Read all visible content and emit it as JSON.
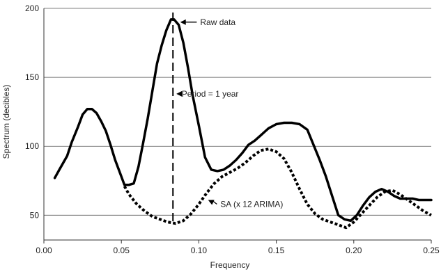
{
  "chart_data": {
    "type": "line",
    "title": "",
    "xlabel": "Frequency",
    "ylabel": "Spectrum (decibles)",
    "xlim": [
      0.0,
      0.25
    ],
    "ylim": [
      32,
      200
    ],
    "x_ticks": [
      "0.00",
      "0.05",
      "0.10",
      "0.15",
      "0.20",
      "0.25"
    ],
    "x_tick_values": [
      0.0,
      0.05,
      0.1,
      0.15,
      0.2,
      0.25
    ],
    "y_ticks": [
      "50",
      "100",
      "150",
      "200"
    ],
    "y_tick_values": [
      50,
      100,
      150,
      200
    ],
    "grid": "horizontal",
    "series": [
      {
        "name": "Raw data",
        "style": "solid",
        "color": "#000000",
        "x": [
          0.007,
          0.01,
          0.015,
          0.018,
          0.022,
          0.025,
          0.028,
          0.031,
          0.034,
          0.037,
          0.04,
          0.043,
          0.046,
          0.049,
          0.052,
          0.055,
          0.058,
          0.061,
          0.064,
          0.067,
          0.07,
          0.073,
          0.076,
          0.079,
          0.082,
          0.084,
          0.087,
          0.09,
          0.093,
          0.096,
          0.1,
          0.104,
          0.108,
          0.112,
          0.116,
          0.12,
          0.124,
          0.128,
          0.132,
          0.136,
          0.14,
          0.145,
          0.15,
          0.155,
          0.16,
          0.165,
          0.17,
          0.174,
          0.178,
          0.182,
          0.186,
          0.19,
          0.194,
          0.198,
          0.202,
          0.206,
          0.21,
          0.214,
          0.218,
          0.222,
          0.226,
          0.23,
          0.234,
          0.238,
          0.242,
          0.246,
          0.25
        ],
        "y": [
          77,
          83,
          93,
          103,
          114,
          123,
          127,
          127,
          124,
          118,
          111,
          101,
          90,
          81,
          72,
          72,
          73,
          85,
          102,
          120,
          140,
          160,
          173,
          184,
          192,
          192,
          188,
          175,
          157,
          137,
          115,
          92,
          83,
          82,
          83,
          86,
          90,
          95,
          101,
          104,
          108,
          113,
          116,
          117,
          117,
          116,
          112,
          101,
          90,
          78,
          64,
          50,
          47,
          46,
          50,
          57,
          63,
          67,
          69,
          67,
          64,
          62,
          62,
          62,
          61,
          61,
          61
        ]
      },
      {
        "name": "SA (x 12 ARIMA)",
        "style": "dotted",
        "color": "#000000",
        "x": [
          0.052,
          0.055,
          0.06,
          0.065,
          0.07,
          0.075,
          0.08,
          0.085,
          0.09,
          0.095,
          0.1,
          0.105,
          0.11,
          0.115,
          0.12,
          0.125,
          0.13,
          0.135,
          0.14,
          0.145,
          0.15,
          0.155,
          0.16,
          0.165,
          0.17,
          0.175,
          0.18,
          0.185,
          0.19,
          0.195,
          0.2,
          0.205,
          0.21,
          0.215,
          0.22,
          0.225,
          0.23,
          0.235,
          0.24,
          0.245,
          0.25
        ],
        "y": [
          71,
          65,
          58,
          53,
          49,
          47,
          45,
          44,
          46,
          51,
          58,
          66,
          73,
          78,
          81,
          84,
          88,
          93,
          97,
          98,
          96,
          91,
          81,
          69,
          58,
          51,
          47,
          45,
          43,
          41,
          45,
          51,
          57,
          63,
          67,
          68,
          65,
          61,
          57,
          53,
          50
        ]
      }
    ],
    "reference_line": {
      "x": 0.0833,
      "style": "dashed"
    },
    "annotations": [
      {
        "text": "Raw data",
        "x": 0.1,
        "y": 190
      },
      {
        "text": "Period = 1 year",
        "x": 0.088,
        "y": 138
      },
      {
        "text": "SA (x 12 ARIMA)",
        "x": 0.113,
        "y": 58
      }
    ]
  }
}
